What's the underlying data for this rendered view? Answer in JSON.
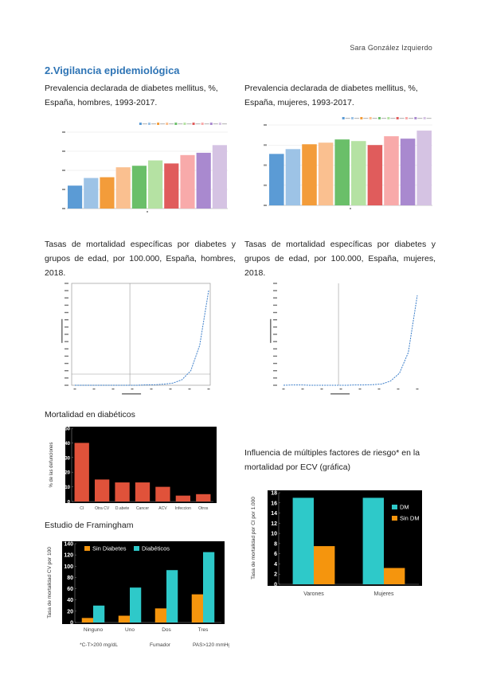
{
  "header": {
    "author": "Sara González Izquierdo"
  },
  "section": {
    "title": "2.Vigilancia epidemiológica"
  },
  "captions": {
    "prev_men": "Prevalencia declarada de diabetes mellitus, %, España, hombres, 1993-2017.",
    "prev_women": "Prevalencia declarada de diabetes mellitus, %, España, mujeres, 1993-2017.",
    "mort_men": "Tasas de mortalidad específicas por diabetes y grupos de edad, por 100.000, España, hombres, 2018.",
    "mort_women": "Tasas de mortalidad específicas por diabetes y grupos de edad, por 100.000, España, mujeres, 2018.",
    "mort_diab": "Mortalidad en diabéticos",
    "framingham": "Estudio de Framingham",
    "multi_risk": "Influencia de múltiples factores de riesgo* en la mortalidad por ECV (gráfica)"
  },
  "chart_data": [
    {
      "id": "prev_men",
      "type": "bar",
      "values": [
        3.0,
        4.0,
        4.1,
        5.4,
        5.6,
        6.3,
        5.9,
        7.0,
        7.3,
        8.3
      ],
      "colors": [
        "#5b9bd5",
        "#9dc3e6",
        "#f39c3a",
        "#fac090",
        "#6abf69",
        "#b5e2a3",
        "#e05c5c",
        "#f8aaaa",
        "#a989cf",
        "#d5c3e3"
      ],
      "ylim": [
        0,
        10
      ]
    },
    {
      "id": "prev_women",
      "type": "bar",
      "values": [
        6.4,
        7.0,
        7.6,
        7.8,
        8.2,
        8.0,
        7.5,
        8.6,
        8.3,
        9.3
      ],
      "colors": [
        "#5b9bd5",
        "#9dc3e6",
        "#f39c3a",
        "#fac090",
        "#6abf69",
        "#b5e2a3",
        "#e05c5c",
        "#f8aaaa",
        "#a989cf",
        "#d5c3e3"
      ],
      "ylim": [
        0,
        10
      ]
    },
    {
      "id": "mort_men",
      "type": "line",
      "values": [
        0,
        0,
        0,
        0,
        0,
        0,
        0,
        0,
        2,
        3,
        6,
        12,
        30,
        80,
        220,
        520
      ],
      "ylim": [
        0,
        560
      ]
    },
    {
      "id": "mort_women",
      "type": "line",
      "values": [
        0,
        1,
        1,
        0,
        0,
        0,
        0,
        0,
        1,
        1,
        2,
        4,
        14,
        40,
        110,
        300
      ],
      "ylim": [
        0,
        340
      ]
    },
    {
      "id": "mort_diab",
      "type": "bar",
      "categories": [
        "CI",
        "Otra CV",
        "D.abete",
        "Cancer",
        "ACV",
        "Infeccion",
        "Otros"
      ],
      "values": [
        40,
        15,
        13,
        13,
        10,
        4,
        5
      ],
      "yticks": [
        0,
        10,
        20,
        30,
        40,
        50
      ],
      "ylim": [
        0,
        50
      ],
      "ylabel": "% de las defunciones",
      "bar_color": "#e0523a"
    },
    {
      "id": "framingham",
      "type": "bar",
      "categories": [
        "Ninguno",
        "Uno",
        "Dos",
        "Tres"
      ],
      "series": [
        {
          "name": "Sin Diabetes",
          "values": [
            8,
            12,
            25,
            50
          ],
          "color": "#f5950d"
        },
        {
          "name": "Diabéticos",
          "values": [
            30,
            62,
            93,
            125
          ],
          "color": "#2ec9c9"
        }
      ],
      "yticks": [
        0,
        20,
        40,
        60,
        80,
        100,
        120,
        140
      ],
      "ylim": [
        0,
        140
      ],
      "ylabel": "Tasa de mortalidad CV por 100",
      "footnotes": [
        "*C-T>200 mg/dL",
        "Fumador",
        "PAS>120 mmHg"
      ]
    },
    {
      "id": "multi_risk",
      "type": "bar",
      "categories": [
        "Varones",
        "Mujeres"
      ],
      "series": [
        {
          "name": "DM",
          "values": [
            17,
            17
          ],
          "color": "#2ec9c9"
        },
        {
          "name": "Sin DM",
          "values": [
            7.5,
            3.2
          ],
          "color": "#f5950d"
        }
      ],
      "yticks": [
        0,
        2,
        4,
        6,
        8,
        10,
        12,
        14,
        16,
        18
      ],
      "ylim": [
        0,
        18
      ],
      "ylabel": "Tasa de mortalidad por CI por 1.000"
    }
  ]
}
